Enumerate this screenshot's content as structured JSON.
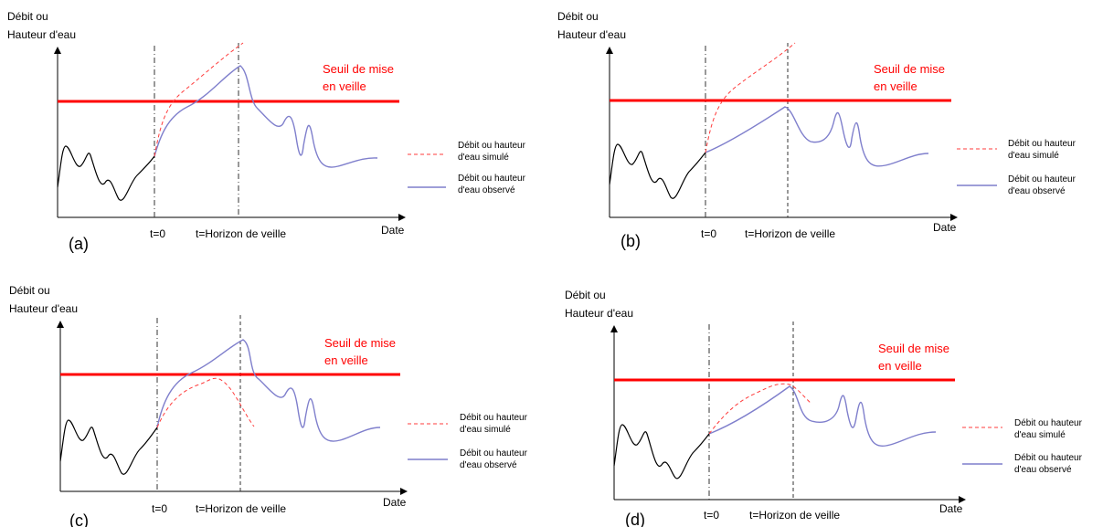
{
  "figure": {
    "colors": {
      "threshold": "#ff0000",
      "simulated": "#ff3b3b",
      "observed": "#7f7fcc",
      "past": "#000000",
      "axis": "#000000"
    },
    "panels": [
      {
        "id": "a",
        "letter": "(a)",
        "y_title": [
          "Débit ou",
          "Hauteur d'eau"
        ],
        "x_title": "Date",
        "tick_t0": "t=0",
        "tick_horizon": "t=Horizon de veille",
        "threshold_label": [
          "Seuil de mise",
          "en veille"
        ],
        "legend_simulated": [
          "Débit ou hauteur",
          "d'eau simulé"
        ],
        "legend_observed": [
          "Débit ou hauteur",
          "d'eau observé"
        ],
        "simulated_case": "above-threshold",
        "observed_case": "above-threshold"
      },
      {
        "id": "b",
        "letter": "(b)",
        "y_title": [
          "Débit ou",
          "Hauteur d'eau"
        ],
        "x_title": "Date",
        "tick_t0": "t=0",
        "tick_horizon": "t=Horizon de veille",
        "threshold_label": [
          "Seuil de mise",
          "en veille"
        ],
        "legend_simulated": [
          "Débit ou hauteur",
          "d'eau simulé"
        ],
        "legend_observed": [
          "Débit ou hauteur",
          "d'eau observé"
        ],
        "simulated_case": "above-threshold",
        "observed_case": "below-threshold"
      },
      {
        "id": "c",
        "letter": "(c)",
        "y_title": [
          "Débit ou",
          "Hauteur d'eau"
        ],
        "x_title": "Date",
        "tick_t0": "t=0",
        "tick_horizon": "t=Horizon de veille",
        "threshold_label": [
          "Seuil de mise",
          "en veille"
        ],
        "legend_simulated": [
          "Débit ou hauteur",
          "d'eau simulé"
        ],
        "legend_observed": [
          "Débit ou hauteur",
          "d'eau observé"
        ],
        "simulated_case": "below-threshold",
        "observed_case": "above-threshold"
      },
      {
        "id": "d",
        "letter": "(d)",
        "y_title": [
          "Débit ou",
          "Hauteur d'eau"
        ],
        "x_title": "Date",
        "tick_t0": "t=0",
        "tick_horizon": "t=Horizon de veille",
        "threshold_label": [
          "Seuil de mise",
          "en veille"
        ],
        "legend_simulated": [
          "Débit ou hauteur",
          "d'eau simulé"
        ],
        "legend_observed": [
          "Débit ou hauteur",
          "d'eau observé"
        ],
        "simulated_case": "below-threshold",
        "observed_case": "below-threshold"
      }
    ]
  }
}
